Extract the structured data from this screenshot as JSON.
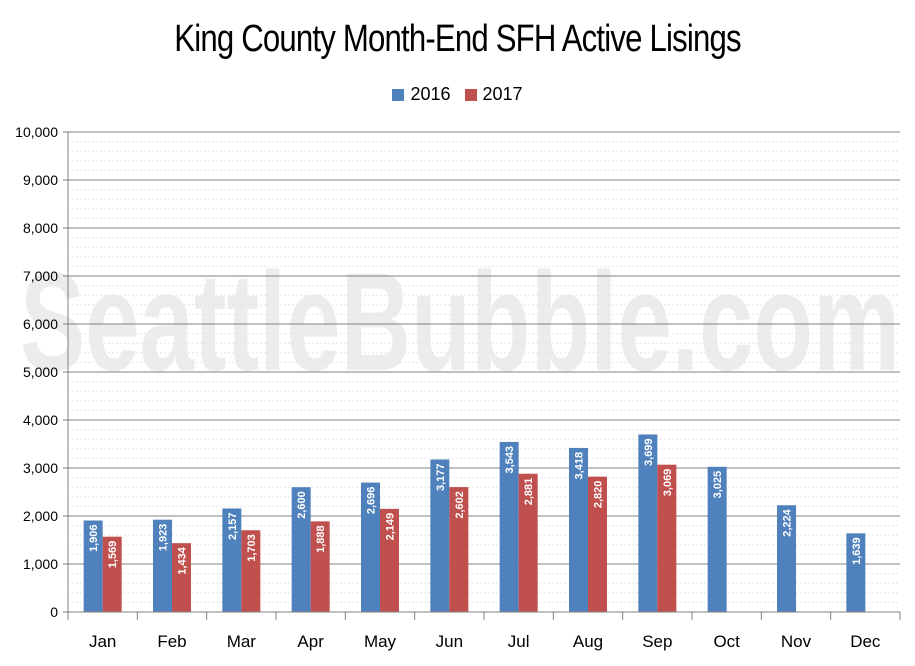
{
  "chart_data": {
    "type": "bar",
    "title": "King County Month-End SFH Active Lisings",
    "watermark": "SeattleBubble.com",
    "categories": [
      "Jan",
      "Feb",
      "Mar",
      "Apr",
      "May",
      "Jun",
      "Jul",
      "Aug",
      "Sep",
      "Oct",
      "Nov",
      "Dec"
    ],
    "series": [
      {
        "name": "2016",
        "color": "#4f81bd",
        "values": [
          1906,
          1923,
          2157,
          2600,
          2696,
          3177,
          3543,
          3418,
          3699,
          3025,
          2224,
          1639
        ],
        "labels": [
          "1,906",
          "1,923",
          "2,157",
          "2,600",
          "2,696",
          "3,177",
          "3,543",
          "3,418",
          "3,699",
          "3,025",
          "2,224",
          "1,639"
        ]
      },
      {
        "name": "2017",
        "color": "#c0504d",
        "values": [
          1569,
          1434,
          1703,
          1888,
          2149,
          2602,
          2881,
          2820,
          3069,
          null,
          null,
          null
        ],
        "labels": [
          "1,569",
          "1,434",
          "1,703",
          "1,888",
          "2,149",
          "2,602",
          "2,881",
          "2,820",
          "3,069",
          "",
          "",
          ""
        ]
      }
    ],
    "ylim": [
      0,
      10000
    ],
    "yticks": [
      "0",
      "1,000",
      "2,000",
      "3,000",
      "4,000",
      "5,000",
      "6,000",
      "7,000",
      "8,000",
      "9,000",
      "10,000"
    ],
    "legend_position": "top-center",
    "grid": true
  }
}
